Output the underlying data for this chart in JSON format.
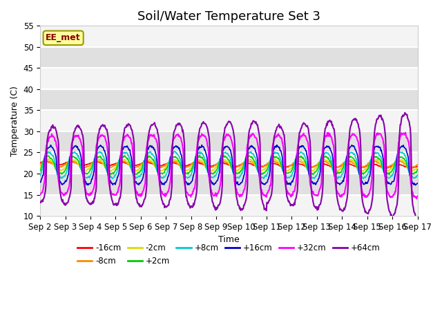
{
  "title": "Soil/Water Temperature Set 3",
  "xlabel": "Time",
  "ylabel": "Temperature (C)",
  "annotation": "EE_met",
  "ylim": [
    10,
    55
  ],
  "xlim": [
    0,
    15
  ],
  "xtick_labels": [
    "Sep 2",
    "Sep 3",
    "Sep 4",
    "Sep 5",
    "Sep 6",
    "Sep 7",
    "Sep 8",
    "Sep 9",
    "Sep 10",
    "Sep 11",
    "Sep 12",
    "Sep 13",
    "Sep 14",
    "Sep 15",
    "Sep 16",
    "Sep 17"
  ],
  "ytick_values": [
    10,
    15,
    20,
    25,
    30,
    35,
    40,
    45,
    50,
    55
  ],
  "colors": {
    "-16cm": "#ff0000",
    "-8cm": "#ff8800",
    "-2cm": "#dddd00",
    "+2cm": "#00cc00",
    "+8cm": "#00cccc",
    "+16cm": "#0000cc",
    "+32cm": "#ff00ff",
    "+64cm": "#8800aa"
  },
  "background_color": "#ffffff",
  "plot_bg_color": "#e0e0e0",
  "band_color": "#f4f4f4",
  "grid_color": "#ffffff",
  "title_fontsize": 13,
  "label_fontsize": 9,
  "tick_fontsize": 8.5
}
